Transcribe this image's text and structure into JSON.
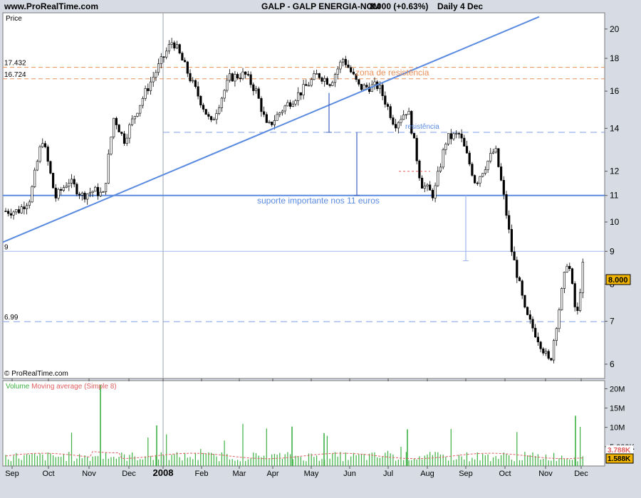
{
  "header": {
    "site": "www.ProRealTime.com",
    "symbol": "GALP - GALP ENERGIA-NOM",
    "last": "8.000 (+0.63%)",
    "frequency": "Daily  4 Dec"
  },
  "panels": {
    "price_label": "Price",
    "volume_legend_volume": "Volume",
    "volume_legend_ma": "Moving average (Simple 8)",
    "copyright": "© ProRealTime.com",
    "last_price_tag": "8.000",
    "vol_tag_ma": "3.788K",
    "vol_tag_vol": "1.588K"
  },
  "colors": {
    "background": "#d6dbe4",
    "plot": "#ffffff",
    "up_candle": "#ffffff",
    "down_candle": "#000000",
    "trendline": "#5b8be0",
    "support": "#5b8be0",
    "resistance_zone": "#e8905a",
    "volume_bar": "#3cb043",
    "volume_ma": "#e06060",
    "price_tag": "#f0b400"
  },
  "chart_data": {
    "type": "candlestick",
    "y_scale": "log",
    "y_range": [
      5.7,
      21.2
    ],
    "y_ticks": [
      6,
      7,
      8,
      9,
      10,
      11,
      12,
      14,
      16,
      18,
      20
    ],
    "x_ticks": [
      "Sep",
      "Oct",
      "Nov",
      "Dec",
      "2008",
      "Feb",
      "Mar",
      "Apr",
      "May",
      "Jun",
      "Jul",
      "Aug",
      "Sep",
      "Oct",
      "Nov",
      "Dec"
    ],
    "x_bold": "2008",
    "close_path": [
      [
        "Sep",
        10.4
      ],
      [
        "Sep",
        10.9
      ],
      [
        "Oct",
        10.9
      ],
      [
        "Oct",
        11.6
      ],
      [
        "Nov",
        11.2
      ],
      [
        "Nov",
        11.0
      ],
      [
        "Nov",
        14.6
      ],
      [
        "Nov",
        13.4
      ],
      [
        "Dec",
        15.0
      ],
      [
        "Dec",
        17.0
      ],
      [
        "2008",
        19.2
      ],
      [
        "2008",
        16.5
      ],
      [
        "Feb",
        14.2
      ],
      [
        "Feb",
        16.8
      ],
      [
        "Mar",
        17.0
      ],
      [
        "Mar",
        16.0
      ],
      [
        "Mar",
        14.0
      ],
      [
        "Apr",
        15.0
      ],
      [
        "Apr",
        16.0
      ],
      [
        "May",
        17.0
      ],
      [
        "May",
        16.5
      ],
      [
        "May",
        18.0
      ],
      [
        "Jun",
        16.2
      ],
      [
        "Jun",
        16.3
      ],
      [
        "Jul",
        14.2
      ],
      [
        "Jul",
        15.0
      ],
      [
        "Jul",
        11.5
      ],
      [
        "Aug",
        11.0
      ],
      [
        "Aug",
        13.5
      ],
      [
        "Aug",
        13.7
      ],
      [
        "Sep",
        13.5
      ],
      [
        "Sep",
        11.5
      ],
      [
        "Sep",
        13.0
      ],
      [
        "Oct",
        11.0
      ],
      [
        "Oct",
        9.0
      ],
      [
        "Oct",
        7.2
      ],
      [
        "Nov",
        6.0
      ],
      [
        "Nov",
        7.3
      ],
      [
        "Nov",
        8.8
      ],
      [
        "Nov",
        7.0
      ],
      [
        "Dec",
        8.7
      ],
      [
        "Dec",
        8.0
      ]
    ],
    "levels": [
      {
        "label": "17.432",
        "value": 17.432,
        "style": "resistance"
      },
      {
        "label": "16.724",
        "value": 16.724,
        "style": "resistance"
      },
      {
        "label": "",
        "value": 13.8,
        "style": "dashed"
      },
      {
        "label": "",
        "value": 11.0,
        "style": "support"
      },
      {
        "label": "9",
        "value": 9.0,
        "style": "thin"
      },
      {
        "label": "6.99",
        "value": 6.99,
        "style": "dashed"
      }
    ],
    "trendline": {
      "start": [
        "Sep",
        9.3
      ],
      "end": [
        "Dec",
        20.9
      ]
    },
    "annotations": [
      {
        "text": "zona de resistência",
        "color": "#e8905a",
        "x": "May",
        "y": 17.0
      },
      {
        "text": "resistência",
        "color": "#5b8be0",
        "x": "Aug",
        "y": 14.0
      },
      {
        "text": "suporte importante nos 11 euros",
        "color": "#5b8be0",
        "x": "Apr",
        "y": 10.65
      }
    ],
    "volume": {
      "y_ticks": [
        "20M",
        "15M",
        "10M",
        "5.000K"
      ],
      "y_values": [
        20,
        15,
        10,
        5
      ],
      "max": 21
    }
  }
}
